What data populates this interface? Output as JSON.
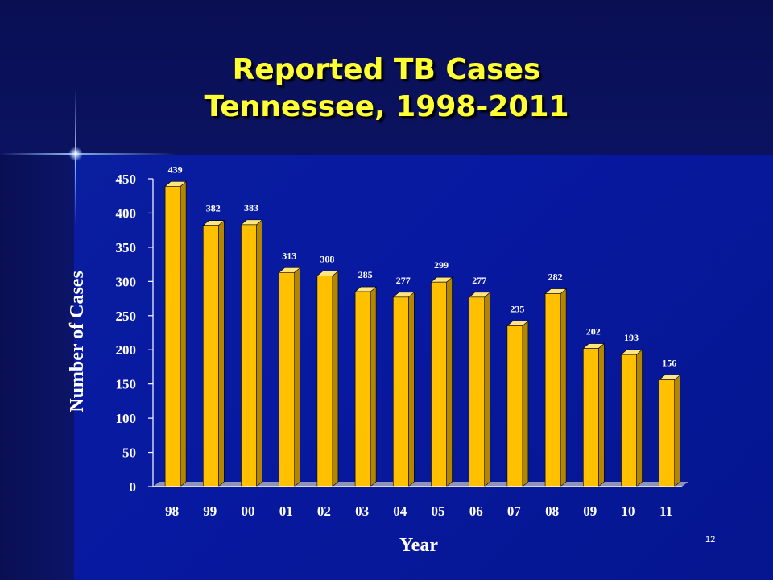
{
  "slide": {
    "number": "12"
  },
  "chart_data": {
    "type": "bar",
    "title_lines": [
      "Reported TB Cases",
      "Tennessee, 1998-2011"
    ],
    "xlabel": "Year",
    "ylabel": "Number of Cases",
    "categories": [
      "98",
      "99",
      "00",
      "01",
      "02",
      "03",
      "04",
      "05",
      "06",
      "07",
      "08",
      "09",
      "10",
      "11"
    ],
    "values": [
      439,
      382,
      383,
      313,
      308,
      285,
      277,
      299,
      277,
      235,
      282,
      202,
      193,
      156
    ],
    "ylim": [
      0,
      450
    ],
    "yticks": [
      0,
      50,
      100,
      150,
      200,
      250,
      300,
      350,
      400,
      450
    ],
    "grid": false,
    "legend": "none",
    "colors": {
      "bar_front": "#ffc000",
      "bar_side": "#b38600",
      "bar_top": "#ffe680",
      "label_text": "#ffffff",
      "title_text": "#ffff33",
      "axis_text": "#ffffff",
      "floor": "#8f93b8"
    }
  }
}
